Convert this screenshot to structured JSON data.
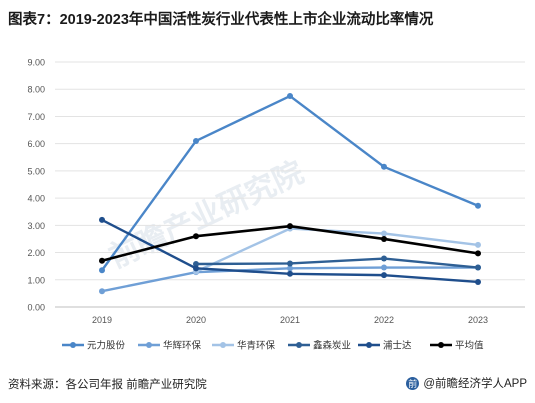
{
  "title": "图表7：2019-2023年中国活性炭行业代表性上市企业流动比率情况",
  "source": "资料来源：各公司年报 前瞻产业研究院",
  "brand": "@前瞻经济学人APP",
  "watermark": "前瞻产业研究院",
  "chart_data": {
    "type": "line",
    "title": "图表7：2019-2023年中国活性炭行业代表性上市企业流动比率情况",
    "xlabel": "",
    "ylabel": "",
    "categories": [
      "2019",
      "2020",
      "2021",
      "2022",
      "2023"
    ],
    "yticks": [
      "0.00",
      "1.00",
      "2.00",
      "3.00",
      "4.00",
      "5.00",
      "6.00",
      "7.00",
      "8.00",
      "9.00"
    ],
    "ylim": [
      0,
      9
    ],
    "grid": true,
    "legend_position": "bottom",
    "series": [
      {
        "name": "元力股份",
        "color": "#4a86c8",
        "values": [
          1.35,
          6.1,
          7.75,
          5.15,
          3.72
        ]
      },
      {
        "name": "华辉环保",
        "color": "#6f9fd6",
        "values": [
          0.58,
          1.28,
          1.42,
          1.45,
          1.45
        ]
      },
      {
        "name": "华青环保",
        "color": "#a3c3e6",
        "values": [
          null,
          1.3,
          2.88,
          2.7,
          2.28
        ]
      },
      {
        "name": "鑫森炭业",
        "color": "#2e5f94",
        "values": [
          null,
          1.58,
          1.6,
          1.78,
          1.45
        ]
      },
      {
        "name": "浦士达",
        "color": "#1f4e8c",
        "values": [
          3.2,
          1.42,
          1.22,
          1.17,
          0.92
        ]
      },
      {
        "name": "平均值",
        "color": "#000000",
        "values": [
          1.7,
          2.6,
          2.97,
          2.5,
          1.97
        ]
      }
    ]
  }
}
